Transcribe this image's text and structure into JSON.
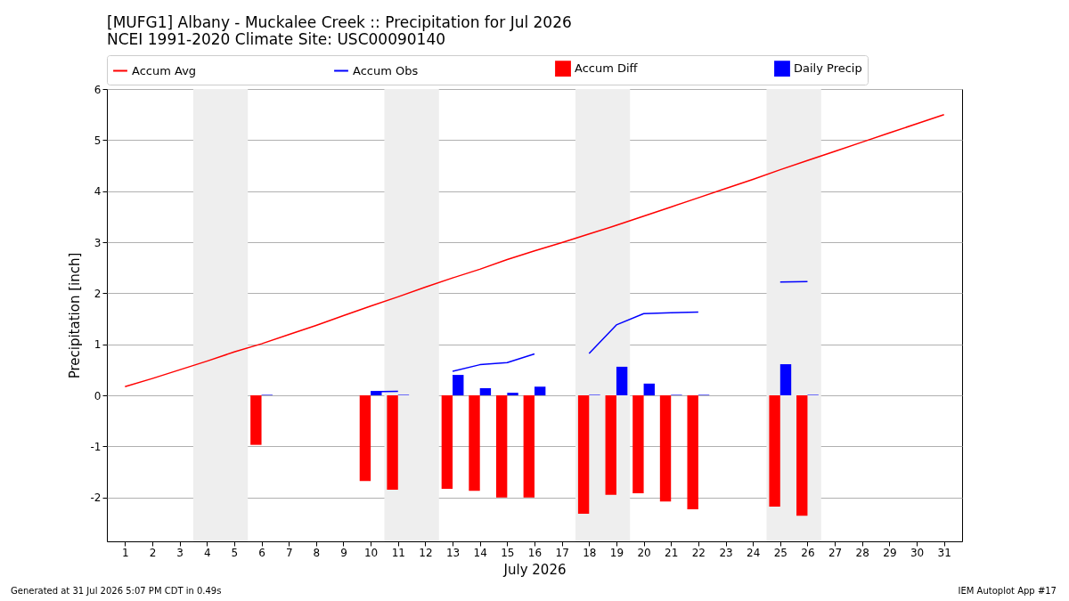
{
  "chart_data": {
    "type": "bar",
    "title": "[MUFG1] Albany - Muckalee Creek :: Precipitation for Jul 2026",
    "subtitle": "NCEI 1991-2020 Climate Site: USC00090140",
    "xlabel": "July 2026",
    "ylabel": "Precipitation [inch]",
    "x": [
      1,
      2,
      3,
      4,
      5,
      6,
      7,
      8,
      9,
      10,
      11,
      12,
      13,
      14,
      15,
      16,
      17,
      18,
      19,
      20,
      21,
      22,
      23,
      24,
      25,
      26,
      27,
      28,
      29,
      30,
      31
    ],
    "xlim": [
      0.5,
      31.5
    ],
    "xticks": [
      1,
      2,
      3,
      4,
      5,
      6,
      7,
      8,
      9,
      10,
      11,
      12,
      13,
      14,
      15,
      16,
      17,
      18,
      19,
      20,
      21,
      22,
      23,
      24,
      25,
      26,
      27,
      28,
      29,
      30,
      31
    ],
    "ylim": [
      -2.86,
      6
    ],
    "yticks": [
      -2,
      -1,
      0,
      1,
      2,
      3,
      4,
      5,
      6
    ],
    "grid": "y",
    "legend": "top",
    "line_style": "solid",
    "marker": "none",
    "series": [
      {
        "name": "Accum Avg",
        "type": "line",
        "color": "#ff0000",
        "values": [
          0.17,
          0.33,
          0.5,
          0.67,
          0.85,
          1.01,
          1.19,
          1.37,
          1.56,
          1.75,
          1.93,
          2.12,
          2.3,
          2.47,
          2.66,
          2.83,
          2.99,
          3.16,
          3.33,
          3.51,
          3.69,
          3.87,
          4.05,
          4.23,
          4.42,
          4.6,
          4.78,
          4.96,
          5.14,
          5.32,
          5.5
        ]
      },
      {
        "name": "Accum Obs",
        "type": "line",
        "color": "#0000ff",
        "values": [
          null,
          null,
          null,
          null,
          null,
          null,
          null,
          null,
          null,
          0.07,
          0.08,
          null,
          0.47,
          0.6,
          0.64,
          0.81,
          null,
          0.82,
          1.38,
          1.6,
          1.62,
          1.63,
          null,
          null,
          2.22,
          2.23,
          null,
          null,
          null,
          null,
          null
        ]
      },
      {
        "name": "Accum Diff",
        "color": "#ff0000",
        "values": [
          null,
          null,
          null,
          null,
          null,
          -0.97,
          null,
          null,
          null,
          -1.68,
          -1.85,
          null,
          -1.83,
          -1.87,
          -2.0,
          -2.0,
          null,
          -2.32,
          -1.95,
          -1.92,
          -2.08,
          -2.23,
          null,
          null,
          -2.18,
          -2.36,
          null,
          null,
          null,
          null,
          null
        ]
      },
      {
        "name": "Daily Precip",
        "color": "#0000ff",
        "values": [
          null,
          null,
          null,
          null,
          null,
          0.01,
          null,
          null,
          null,
          0.08,
          0.01,
          null,
          0.4,
          0.14,
          0.05,
          0.17,
          null,
          0.01,
          0.56,
          0.23,
          0.01,
          0.01,
          null,
          null,
          0.61,
          0.01,
          null,
          null,
          null,
          null,
          null
        ]
      }
    ],
    "bands": [
      {
        "axis": "x",
        "from": 3.5,
        "to": 5.5,
        "color": "#eeeeee"
      },
      {
        "axis": "x",
        "from": 10.5,
        "to": 12.5,
        "color": "#eeeeee"
      },
      {
        "axis": "x",
        "from": 17.5,
        "to": 19.5,
        "color": "#eeeeee"
      },
      {
        "axis": "x",
        "from": 24.5,
        "to": 26.5,
        "color": "#eeeeee"
      }
    ],
    "annotations": [
      "Generated at 31 Jul 2026 5:07 PM CDT in 0.49s",
      "IEM Autoplot App #17"
    ]
  }
}
